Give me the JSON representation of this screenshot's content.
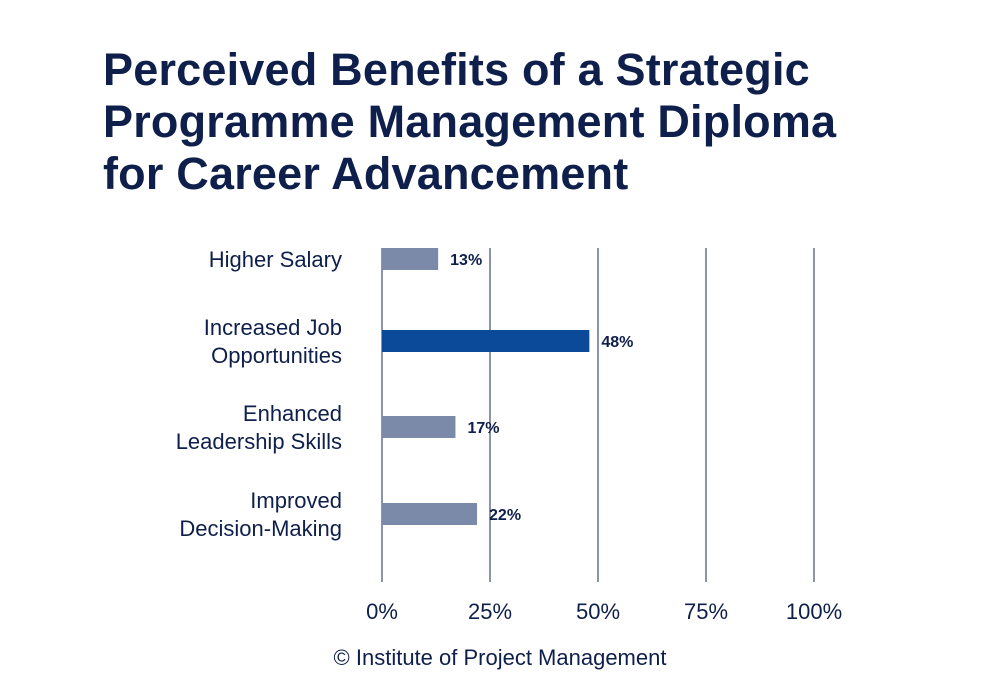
{
  "title_lines": [
    "Perceived Benefits of a Strategic",
    "Programme Management Diploma",
    "for Career Advancement"
  ],
  "chart_data": {
    "type": "bar",
    "orientation": "horizontal",
    "categories": [
      [
        "Higher Salary"
      ],
      [
        "Increased Job",
        "Opportunities"
      ],
      [
        "Enhanced",
        "Leadership Skills"
      ],
      [
        "Improved",
        "Decision-Making"
      ]
    ],
    "values": [
      13,
      48,
      17,
      22
    ],
    "data_labels": [
      "13%",
      "48%",
      "17%",
      "22%"
    ],
    "xlim": [
      0,
      100
    ],
    "x_ticks": [
      "0%",
      "25%",
      "50%",
      "75%",
      "100%"
    ],
    "grid": true,
    "colors": {
      "default_bar": "#7a8aa8",
      "highlight_bar": "#0b4a99",
      "grid": "#1a2850",
      "text": "#0f1f4b"
    },
    "highlight_index": 1
  },
  "footer": "© Institute of Project Management"
}
